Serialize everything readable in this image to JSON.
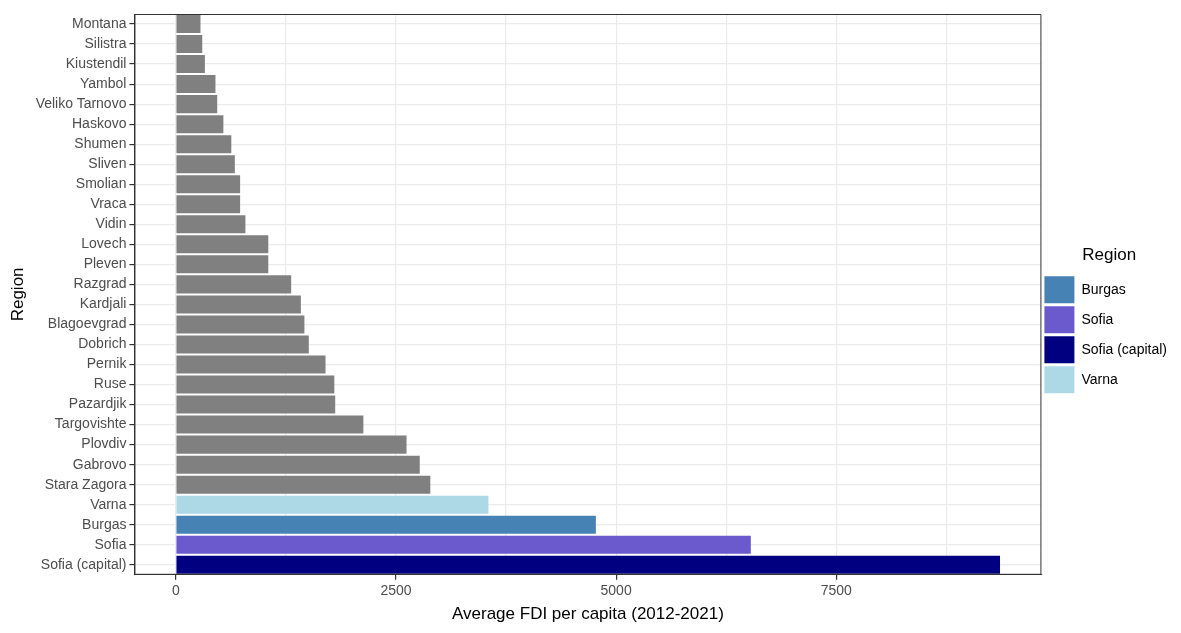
{
  "chart_data": {
    "type": "bar",
    "orientation": "horizontal",
    "stacked": true,
    "xlabel": "Average FDI per capita (2012-2021)",
    "ylabel": "Region",
    "legend_title": "Region",
    "legend": "right",
    "grid": true,
    "categories": [
      "Montana",
      "Silistra",
      "Kiustendil",
      "Yambol",
      "Veliko Tarnovo",
      "Haskovo",
      "Shumen",
      "Sliven",
      "Smolian",
      "Vraca",
      "Vidin",
      "Lovech",
      "Pleven",
      "Razgrad",
      "Kardjali",
      "Blagoevgrad",
      "Dobrich",
      "Pernik",
      "Ruse",
      "Pazardjik",
      "Targovishte",
      "Plovdiv",
      "Gabrovo",
      "Stara Zagora",
      "Varna",
      "Burgas",
      "Sofia",
      "Sofia (capital)"
    ],
    "xlim": [
      -470,
      9830
    ],
    "xticks": [
      0,
      {
        "value": 1250,
        "label": null
      },
      2500,
      {
        "value": 3750,
        "label": null
      },
      5000,
      {
        "value": 6250,
        "label": null
      },
      7500,
      {
        "value": 8750,
        "label": null
      }
    ],
    "series": [
      {
        "color": "#808080",
        "values": [
          280,
          300,
          330,
          450,
          470,
          540,
          630,
          670,
          730,
          730,
          790,
          1050,
          1050,
          1310,
          1420,
          1460,
          1510,
          1700,
          1800,
          1810,
          2130,
          2620,
          2770,
          2890,
          null,
          null,
          null,
          null
        ]
      },
      {
        "name": "Burgas",
        "color": "#4682b4",
        "values": [
          null,
          null,
          null,
          null,
          null,
          null,
          null,
          null,
          null,
          null,
          null,
          null,
          null,
          null,
          null,
          null,
          null,
          null,
          null,
          null,
          null,
          null,
          null,
          null,
          null,
          4770,
          null,
          null
        ]
      },
      {
        "name": "Sofia",
        "color": "#6a5acd",
        "values": [
          null,
          null,
          null,
          null,
          null,
          null,
          null,
          null,
          null,
          null,
          null,
          null,
          null,
          null,
          null,
          null,
          null,
          null,
          null,
          null,
          null,
          null,
          null,
          null,
          null,
          null,
          6530,
          null
        ]
      },
      {
        "name": "Sofia (capital)",
        "color": "#000080",
        "values": [
          null,
          null,
          null,
          null,
          null,
          null,
          null,
          null,
          null,
          null,
          null,
          null,
          null,
          null,
          null,
          null,
          null,
          null,
          null,
          null,
          null,
          null,
          null,
          null,
          null,
          null,
          null,
          9360
        ]
      },
      {
        "name": "Varna",
        "color": "#add8e6",
        "values": [
          null,
          null,
          null,
          null,
          null,
          null,
          null,
          null,
          null,
          null,
          null,
          null,
          null,
          null,
          null,
          null,
          null,
          null,
          null,
          null,
          null,
          null,
          null,
          null,
          3550,
          null,
          null,
          null
        ]
      }
    ]
  }
}
